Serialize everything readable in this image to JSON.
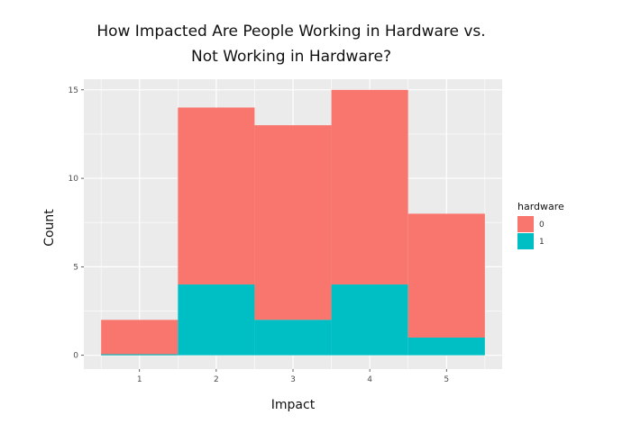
{
  "chart_data": {
    "type": "bar",
    "stacked": true,
    "title_lines": [
      "How Impacted Are People Working in Hardware vs.",
      "Not Working in Hardware?"
    ],
    "xlabel": "Impact",
    "ylabel": "Count",
    "categories": [
      "1",
      "2",
      "3",
      "4",
      "5"
    ],
    "series": [
      {
        "name": "0",
        "values": [
          2,
          10,
          11,
          11,
          7
        ],
        "color": "#F8766D"
      },
      {
        "name": "1",
        "values": [
          0,
          4,
          2,
          4,
          1
        ],
        "color": "#00BFC4"
      }
    ],
    "ylim": [
      0,
      15.6
    ],
    "yticks": [
      0,
      5,
      10,
      15
    ],
    "legend": {
      "title": "hardware",
      "position": "right"
    },
    "grid": true,
    "panel_color": "#EBEBEB",
    "grid_color": "#FFFFFF"
  }
}
